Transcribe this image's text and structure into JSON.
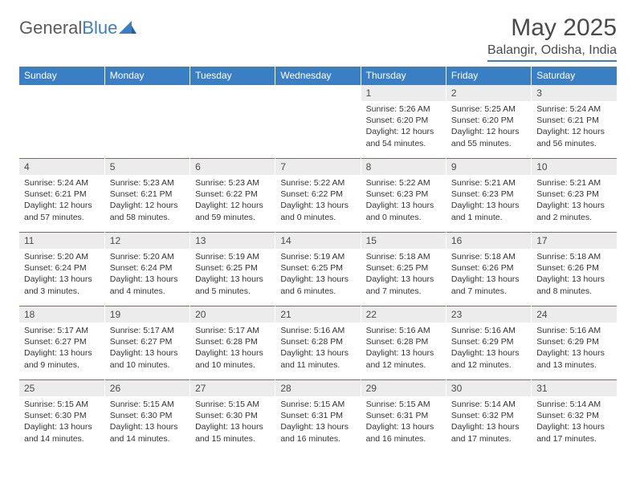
{
  "brand": {
    "word1": "General",
    "word2": "Blue"
  },
  "header": {
    "month_title": "May 2025",
    "location": "Balangir, Odisha, India"
  },
  "colors": {
    "accent": "#3a7fc4",
    "header_bg": "#3a7fc4",
    "header_fg": "#ffffff",
    "daynum_bg": "#ececec",
    "text": "#333333",
    "background": "#ffffff"
  },
  "days_of_week": [
    "Sunday",
    "Monday",
    "Tuesday",
    "Wednesday",
    "Thursday",
    "Friday",
    "Saturday"
  ],
  "weeks": [
    [
      null,
      null,
      null,
      null,
      {
        "num": "1",
        "sunrise": "Sunrise: 5:26 AM",
        "sunset": "Sunset: 6:20 PM",
        "daylight": "Daylight: 12 hours and 54 minutes."
      },
      {
        "num": "2",
        "sunrise": "Sunrise: 5:25 AM",
        "sunset": "Sunset: 6:20 PM",
        "daylight": "Daylight: 12 hours and 55 minutes."
      },
      {
        "num": "3",
        "sunrise": "Sunrise: 5:24 AM",
        "sunset": "Sunset: 6:21 PM",
        "daylight": "Daylight: 12 hours and 56 minutes."
      }
    ],
    [
      {
        "num": "4",
        "sunrise": "Sunrise: 5:24 AM",
        "sunset": "Sunset: 6:21 PM",
        "daylight": "Daylight: 12 hours and 57 minutes."
      },
      {
        "num": "5",
        "sunrise": "Sunrise: 5:23 AM",
        "sunset": "Sunset: 6:21 PM",
        "daylight": "Daylight: 12 hours and 58 minutes."
      },
      {
        "num": "6",
        "sunrise": "Sunrise: 5:23 AM",
        "sunset": "Sunset: 6:22 PM",
        "daylight": "Daylight: 12 hours and 59 minutes."
      },
      {
        "num": "7",
        "sunrise": "Sunrise: 5:22 AM",
        "sunset": "Sunset: 6:22 PM",
        "daylight": "Daylight: 13 hours and 0 minutes."
      },
      {
        "num": "8",
        "sunrise": "Sunrise: 5:22 AM",
        "sunset": "Sunset: 6:23 PM",
        "daylight": "Daylight: 13 hours and 0 minutes."
      },
      {
        "num": "9",
        "sunrise": "Sunrise: 5:21 AM",
        "sunset": "Sunset: 6:23 PM",
        "daylight": "Daylight: 13 hours and 1 minute."
      },
      {
        "num": "10",
        "sunrise": "Sunrise: 5:21 AM",
        "sunset": "Sunset: 6:23 PM",
        "daylight": "Daylight: 13 hours and 2 minutes."
      }
    ],
    [
      {
        "num": "11",
        "sunrise": "Sunrise: 5:20 AM",
        "sunset": "Sunset: 6:24 PM",
        "daylight": "Daylight: 13 hours and 3 minutes."
      },
      {
        "num": "12",
        "sunrise": "Sunrise: 5:20 AM",
        "sunset": "Sunset: 6:24 PM",
        "daylight": "Daylight: 13 hours and 4 minutes."
      },
      {
        "num": "13",
        "sunrise": "Sunrise: 5:19 AM",
        "sunset": "Sunset: 6:25 PM",
        "daylight": "Daylight: 13 hours and 5 minutes."
      },
      {
        "num": "14",
        "sunrise": "Sunrise: 5:19 AM",
        "sunset": "Sunset: 6:25 PM",
        "daylight": "Daylight: 13 hours and 6 minutes."
      },
      {
        "num": "15",
        "sunrise": "Sunrise: 5:18 AM",
        "sunset": "Sunset: 6:25 PM",
        "daylight": "Daylight: 13 hours and 7 minutes."
      },
      {
        "num": "16",
        "sunrise": "Sunrise: 5:18 AM",
        "sunset": "Sunset: 6:26 PM",
        "daylight": "Daylight: 13 hours and 7 minutes."
      },
      {
        "num": "17",
        "sunrise": "Sunrise: 5:18 AM",
        "sunset": "Sunset: 6:26 PM",
        "daylight": "Daylight: 13 hours and 8 minutes."
      }
    ],
    [
      {
        "num": "18",
        "sunrise": "Sunrise: 5:17 AM",
        "sunset": "Sunset: 6:27 PM",
        "daylight": "Daylight: 13 hours and 9 minutes."
      },
      {
        "num": "19",
        "sunrise": "Sunrise: 5:17 AM",
        "sunset": "Sunset: 6:27 PM",
        "daylight": "Daylight: 13 hours and 10 minutes."
      },
      {
        "num": "20",
        "sunrise": "Sunrise: 5:17 AM",
        "sunset": "Sunset: 6:28 PM",
        "daylight": "Daylight: 13 hours and 10 minutes."
      },
      {
        "num": "21",
        "sunrise": "Sunrise: 5:16 AM",
        "sunset": "Sunset: 6:28 PM",
        "daylight": "Daylight: 13 hours and 11 minutes."
      },
      {
        "num": "22",
        "sunrise": "Sunrise: 5:16 AM",
        "sunset": "Sunset: 6:28 PM",
        "daylight": "Daylight: 13 hours and 12 minutes."
      },
      {
        "num": "23",
        "sunrise": "Sunrise: 5:16 AM",
        "sunset": "Sunset: 6:29 PM",
        "daylight": "Daylight: 13 hours and 12 minutes."
      },
      {
        "num": "24",
        "sunrise": "Sunrise: 5:16 AM",
        "sunset": "Sunset: 6:29 PM",
        "daylight": "Daylight: 13 hours and 13 minutes."
      }
    ],
    [
      {
        "num": "25",
        "sunrise": "Sunrise: 5:15 AM",
        "sunset": "Sunset: 6:30 PM",
        "daylight": "Daylight: 13 hours and 14 minutes."
      },
      {
        "num": "26",
        "sunrise": "Sunrise: 5:15 AM",
        "sunset": "Sunset: 6:30 PM",
        "daylight": "Daylight: 13 hours and 14 minutes."
      },
      {
        "num": "27",
        "sunrise": "Sunrise: 5:15 AM",
        "sunset": "Sunset: 6:30 PM",
        "daylight": "Daylight: 13 hours and 15 minutes."
      },
      {
        "num": "28",
        "sunrise": "Sunrise: 5:15 AM",
        "sunset": "Sunset: 6:31 PM",
        "daylight": "Daylight: 13 hours and 16 minutes."
      },
      {
        "num": "29",
        "sunrise": "Sunrise: 5:15 AM",
        "sunset": "Sunset: 6:31 PM",
        "daylight": "Daylight: 13 hours and 16 minutes."
      },
      {
        "num": "30",
        "sunrise": "Sunrise: 5:14 AM",
        "sunset": "Sunset: 6:32 PM",
        "daylight": "Daylight: 13 hours and 17 minutes."
      },
      {
        "num": "31",
        "sunrise": "Sunrise: 5:14 AM",
        "sunset": "Sunset: 6:32 PM",
        "daylight": "Daylight: 13 hours and 17 minutes."
      }
    ]
  ]
}
